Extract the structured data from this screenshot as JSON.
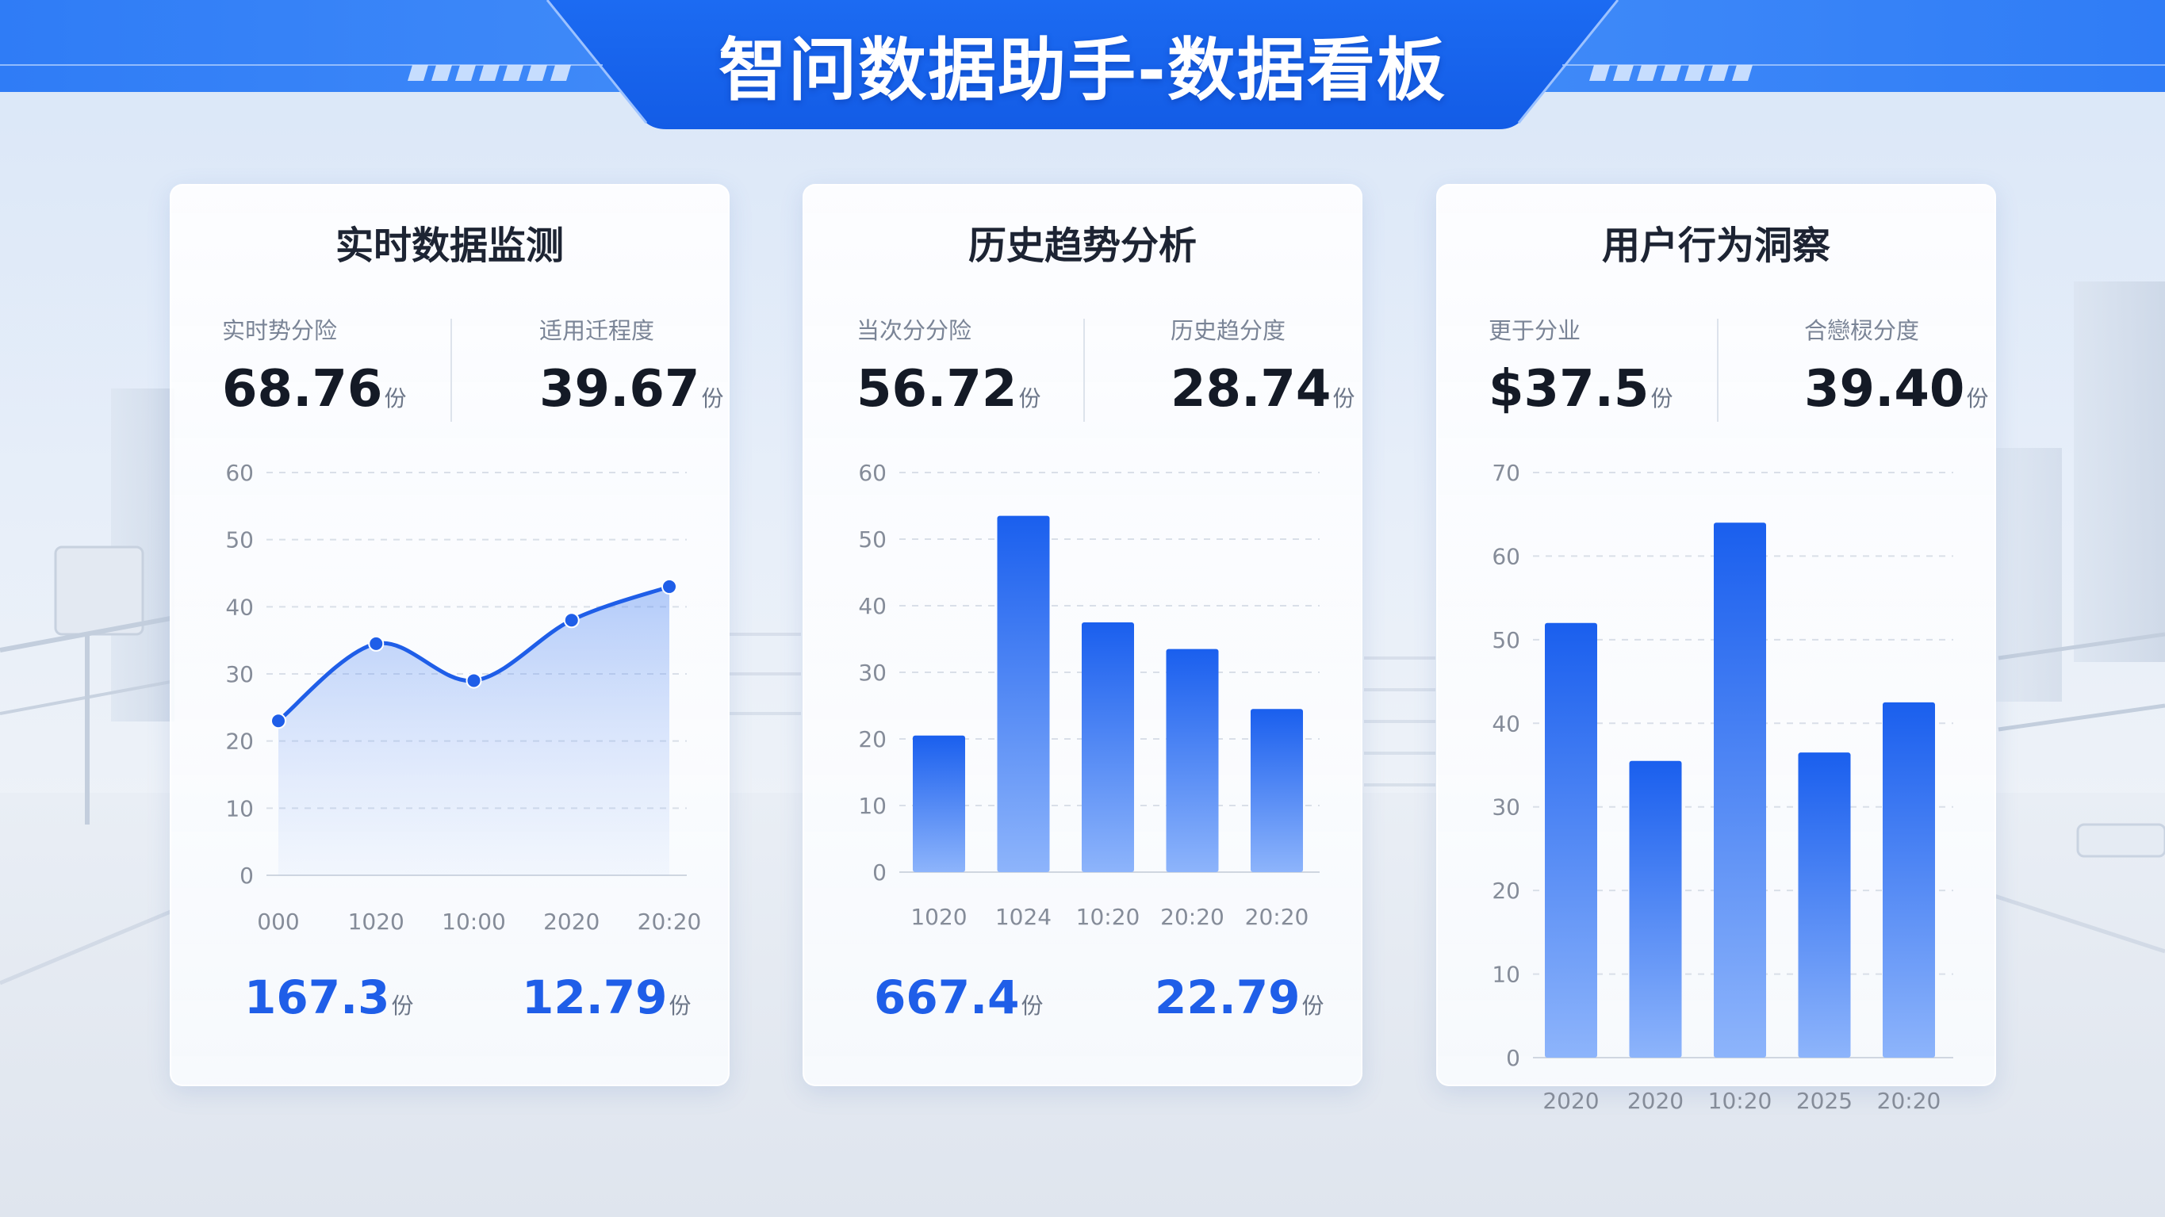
{
  "header": {
    "title": "智问数据助手-数据看板"
  },
  "cards": [
    {
      "title": "实时数据监测",
      "stats": [
        {
          "label": "实时势分险",
          "value": "68.76",
          "unit": "份"
        },
        {
          "label": "适用迁程度",
          "value": "39.67",
          "unit": "份"
        }
      ],
      "bottom": [
        {
          "value": "167.3",
          "unit": "份"
        },
        {
          "value": "12.79",
          "unit": "份"
        }
      ]
    },
    {
      "title": "历史趋势分析",
      "stats": [
        {
          "label": "当次分分险",
          "value": "56.72",
          "unit": "份"
        },
        {
          "label": "历史趋分度",
          "value": "28.74",
          "unit": "份"
        }
      ],
      "bottom": [
        {
          "value": "667.4",
          "unit": "份"
        },
        {
          "value": "22.79",
          "unit": "份"
        }
      ]
    },
    {
      "title": "用户行为洞察",
      "stats": [
        {
          "label": "更于分业",
          "value": "$37.5",
          "unit": "份"
        },
        {
          "label": "合戀棂分度",
          "value": "39.40",
          "unit": "份"
        }
      ],
      "bottom": []
    }
  ],
  "chart_data": [
    {
      "type": "area",
      "categories": [
        "000",
        "1020",
        "10:00",
        "2020",
        "20:20"
      ],
      "values": [
        23,
        34.5,
        29,
        38,
        43
      ],
      "ylim": [
        0,
        60
      ],
      "yticks": [
        0,
        10,
        20,
        30,
        40,
        50,
        60
      ],
      "grid": true,
      "color": "#1f5ee8"
    },
    {
      "type": "bar",
      "categories": [
        "1020",
        "1024",
        "10:20",
        "20:20",
        "20:20"
      ],
      "values": [
        20.5,
        53.5,
        37.5,
        33.5,
        24.5
      ],
      "ylim": [
        0,
        60
      ],
      "yticks": [
        0,
        10,
        20,
        30,
        40,
        50,
        60
      ],
      "grid": true,
      "color": "#1f66f0"
    },
    {
      "type": "bar",
      "categories": [
        "2020",
        "2020",
        "10:20",
        "2025",
        "20:20"
      ],
      "values": [
        52,
        35.5,
        64,
        36.5,
        42.5
      ],
      "ylim": [
        0,
        70
      ],
      "yticks": [
        0,
        10,
        20,
        30,
        40,
        50,
        60,
        70
      ],
      "grid": true,
      "color": "#1f66f0"
    }
  ]
}
